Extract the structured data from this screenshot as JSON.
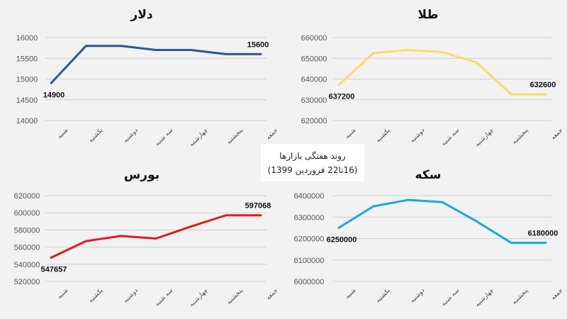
{
  "caption": {
    "line1": "روند هفتگی بازارها",
    "line2": "(16تا22 فروردین 1399)"
  },
  "chart_data": [
    {
      "type": "line",
      "title": "دلار",
      "categories": [
        "شنبه",
        "یکشنبه",
        "دوشنبه",
        "سه شنبه",
        "چهارشنبه",
        "پنجشنبه",
        "جمعه"
      ],
      "values": [
        14900,
        15800,
        15800,
        15700,
        15700,
        15600,
        15600
      ],
      "data_labels": [
        "14900",
        "",
        "",
        "",
        "",
        "",
        "15600"
      ],
      "yticks": [
        "14000",
        "14500",
        "15000",
        "15500",
        "16000"
      ],
      "ylim": [
        14000,
        16000
      ],
      "color": "#2f5597",
      "grid": true
    },
    {
      "type": "line",
      "title": "طلا",
      "categories": [
        "شنبه",
        "یکشنبه",
        "دوشنبه",
        "سه شنبه",
        "چهارشنبه",
        "پنجشنبه",
        "جمعه"
      ],
      "values": [
        637200,
        652500,
        654000,
        653000,
        648000,
        632600,
        632600
      ],
      "data_labels": [
        "637200",
        "",
        "",
        "",
        "",
        "",
        "632600"
      ],
      "yticks": [
        "620000",
        "630000",
        "640000",
        "650000",
        "660000"
      ],
      "ylim": [
        620000,
        660000
      ],
      "color": "#ffd966",
      "grid": true
    },
    {
      "type": "line",
      "title": "بورس",
      "categories": [
        "شنبه",
        "یکشنبه",
        "دوشنبه",
        "سه شنبه",
        "چهارشنبه",
        "پنجشنبه",
        "جمعه"
      ],
      "values": [
        547657,
        567000,
        573000,
        570000,
        584000,
        597068,
        597068
      ],
      "data_labels": [
        "547657",
        "",
        "",
        "",
        "",
        "",
        "597068"
      ],
      "yticks": [
        "520000",
        "540000",
        "560000",
        "580000",
        "600000",
        "620000"
      ],
      "ylim": [
        520000,
        620000
      ],
      "color": "#e31a1c",
      "grid": true
    },
    {
      "type": "line",
      "title": "سکه",
      "categories": [
        "شنبه",
        "یکشنبه",
        "دوشنبه",
        "سه شنبه",
        "چهارشنبه",
        "پنجشنبه",
        "جمعه"
      ],
      "values": [
        6250000,
        6350000,
        6380000,
        6370000,
        6280000,
        6180000,
        6180000
      ],
      "data_labels": [
        "6250000",
        "",
        "",
        "",
        "",
        "",
        "6180000"
      ],
      "yticks": [
        "6000000",
        "6100000",
        "6200000",
        "6300000",
        "6400000"
      ],
      "ylim": [
        6000000,
        6400000
      ],
      "color": "#1ea7e1",
      "grid": true
    }
  ]
}
